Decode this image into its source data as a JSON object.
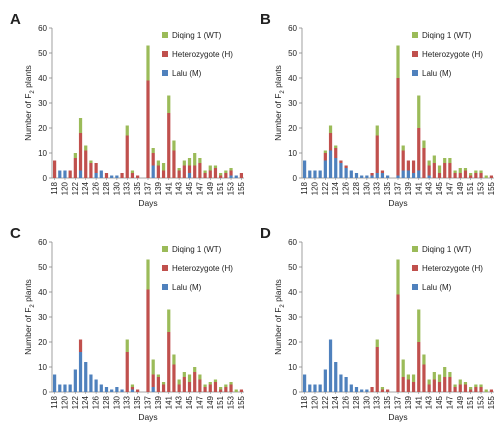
{
  "colors": {
    "WT": "#9bbb59",
    "H": "#c0504d",
    "M": "#4f81bd",
    "axis": "#888888"
  },
  "chart_data": [
    {
      "type": "bar",
      "stacked": true,
      "panel": "A",
      "title": "",
      "xlabel": "Days",
      "ylabel": "Number of F2 plants",
      "ylim": [
        0,
        60
      ],
      "yticks": [
        "0",
        "10",
        "20",
        "30",
        "40",
        "50",
        "60"
      ],
      "categories": [
        "118",
        "119",
        "120",
        "121",
        "122",
        "123",
        "124",
        "125",
        "126",
        "127",
        "128",
        "129",
        "130",
        "131",
        "133",
        "134",
        "135",
        "136",
        "137",
        "138",
        "139",
        "140",
        "141",
        "142",
        "143",
        "144",
        "145",
        "146",
        "147",
        "148",
        "149",
        "150",
        "151",
        "152",
        "153",
        "154",
        "155"
      ],
      "x_tick_labels": [
        "118",
        "120",
        "122",
        "124",
        "126",
        "128",
        "130",
        "133",
        "135",
        "137",
        "139",
        "141",
        "143",
        "145",
        "147",
        "149",
        "151",
        "153",
        "155"
      ],
      "series": [
        {
          "name": "Lalu (M)",
          "key": "M",
          "values": [
            0,
            3,
            3,
            0,
            0,
            3,
            0,
            0,
            2,
            3,
            0,
            1,
            1,
            0,
            0,
            0,
            0,
            0,
            0,
            5,
            0,
            0,
            0,
            0,
            0,
            0,
            2,
            0,
            0,
            0,
            0,
            0,
            0,
            0,
            1,
            1,
            0
          ]
        },
        {
          "name": "Heterozygote (H)",
          "key": "H",
          "values": [
            7,
            0,
            0,
            3,
            8,
            15,
            11,
            6,
            4,
            0,
            2,
            0,
            0,
            2,
            17,
            2,
            1,
            0,
            39,
            5,
            5,
            3,
            26,
            11,
            3,
            5,
            3,
            5,
            6,
            2,
            3,
            4,
            1,
            2,
            2,
            0,
            2
          ]
        },
        {
          "name": "Diqing 1 (WT)",
          "key": "WT",
          "values": [
            0,
            0,
            0,
            0,
            2,
            6,
            2,
            1,
            0,
            0,
            0,
            0,
            0,
            0,
            4,
            1,
            0,
            0,
            14,
            2,
            2,
            3,
            7,
            4,
            1,
            2,
            3,
            5,
            2,
            1,
            2,
            1,
            1,
            1,
            1,
            0,
            0
          ]
        }
      ],
      "legend": [
        "Diqing 1 (WT)",
        "Heterozygote (H)",
        "Lalu (M)"
      ],
      "legend_position": "top-right",
      "grid": false
    },
    {
      "type": "bar",
      "stacked": true,
      "panel": "B",
      "title": "",
      "xlabel": "Days",
      "ylabel": "Number of F2 plants",
      "ylim": [
        0,
        60
      ],
      "yticks": [
        "0",
        "10",
        "20",
        "30",
        "40",
        "50",
        "60"
      ],
      "categories": [
        "118",
        "119",
        "120",
        "121",
        "122",
        "123",
        "124",
        "125",
        "126",
        "127",
        "128",
        "129",
        "130",
        "131",
        "133",
        "134",
        "135",
        "136",
        "137",
        "138",
        "139",
        "140",
        "141",
        "142",
        "143",
        "144",
        "145",
        "146",
        "147",
        "148",
        "149",
        "150",
        "151",
        "152",
        "153",
        "154",
        "155"
      ],
      "x_tick_labels": [
        "118",
        "120",
        "122",
        "124",
        "126",
        "128",
        "130",
        "133",
        "135",
        "137",
        "139",
        "141",
        "143",
        "145",
        "147",
        "149",
        "151",
        "153",
        "155"
      ],
      "series": [
        {
          "name": "Lalu (M)",
          "key": "M",
          "values": [
            7,
            3,
            3,
            3,
            7,
            11,
            8,
            6,
            4,
            3,
            2,
            1,
            1,
            1,
            2,
            2,
            1,
            0,
            1,
            3,
            3,
            2,
            3,
            0,
            1,
            0,
            0,
            0,
            0,
            0,
            0,
            0,
            0,
            0,
            0,
            0,
            0
          ]
        },
        {
          "name": "Heterozygote (H)",
          "key": "H",
          "values": [
            0,
            0,
            0,
            0,
            3,
            7,
            4,
            1,
            1,
            0,
            0,
            0,
            0,
            1,
            15,
            1,
            0,
            0,
            39,
            8,
            4,
            5,
            17,
            12,
            4,
            6,
            2,
            6,
            6,
            2,
            2,
            3,
            1,
            2,
            2,
            0,
            1
          ]
        },
        {
          "name": "Diqing 1 (WT)",
          "key": "WT",
          "values": [
            0,
            0,
            0,
            0,
            1,
            3,
            1,
            0,
            0,
            0,
            0,
            0,
            0,
            0,
            4,
            0,
            0,
            0,
            13,
            2,
            0,
            0,
            13,
            3,
            2,
            3,
            3,
            2,
            2,
            1,
            2,
            1,
            1,
            1,
            1,
            1,
            0
          ]
        }
      ],
      "legend": [
        "Diqing 1 (WT)",
        "Heterozygote (H)",
        "Lalu (M)"
      ],
      "legend_position": "top-right",
      "grid": false
    },
    {
      "type": "bar",
      "stacked": true,
      "panel": "C",
      "title": "",
      "xlabel": "Days",
      "ylabel": "Number of F2 plants",
      "ylim": [
        0,
        60
      ],
      "yticks": [
        "0",
        "10",
        "20",
        "30",
        "40",
        "50",
        "60"
      ],
      "categories": [
        "118",
        "119",
        "120",
        "121",
        "122",
        "123",
        "124",
        "125",
        "126",
        "127",
        "128",
        "129",
        "130",
        "131",
        "133",
        "134",
        "135",
        "136",
        "137",
        "138",
        "139",
        "140",
        "141",
        "142",
        "143",
        "144",
        "145",
        "146",
        "147",
        "148",
        "149",
        "150",
        "151",
        "152",
        "153",
        "154",
        "155"
      ],
      "x_tick_labels": [
        "118",
        "120",
        "122",
        "124",
        "126",
        "128",
        "130",
        "133",
        "135",
        "137",
        "139",
        "141",
        "143",
        "145",
        "147",
        "149",
        "151",
        "153",
        "155"
      ],
      "series": [
        {
          "name": "Lalu (M)",
          "key": "M",
          "values": [
            7,
            3,
            3,
            3,
            9,
            16,
            12,
            7,
            5,
            3,
            2,
            1,
            2,
            1,
            0,
            1,
            0,
            0,
            0,
            2,
            0,
            0,
            0,
            0,
            0,
            0,
            0,
            0,
            0,
            0,
            0,
            0,
            0,
            0,
            0,
            0,
            0
          ]
        },
        {
          "name": "Heterozygote (H)",
          "key": "H",
          "values": [
            0,
            0,
            0,
            0,
            0,
            5,
            0,
            0,
            0,
            0,
            0,
            0,
            0,
            0,
            16,
            1,
            1,
            0,
            41,
            5,
            6,
            3,
            24,
            11,
            3,
            6,
            4,
            8,
            5,
            2,
            3,
            4,
            1,
            2,
            3,
            0,
            1
          ]
        },
        {
          "name": "Diqing 1 (WT)",
          "key": "WT",
          "values": [
            0,
            0,
            0,
            0,
            0,
            0,
            0,
            0,
            0,
            0,
            0,
            0,
            0,
            0,
            5,
            1,
            0,
            0,
            12,
            6,
            1,
            1,
            9,
            4,
            2,
            2,
            3,
            2,
            2,
            1,
            1,
            1,
            1,
            1,
            1,
            1,
            0
          ]
        }
      ],
      "legend": [
        "Diqing 1 (WT)",
        "Heterozygote (H)",
        "Lalu (M)"
      ],
      "legend_position": "top-right",
      "grid": false
    },
    {
      "type": "bar",
      "stacked": true,
      "panel": "D",
      "title": "",
      "xlabel": "Days",
      "ylabel": "Number of F2 plants",
      "ylim": [
        0,
        60
      ],
      "yticks": [
        "0",
        "10",
        "20",
        "30",
        "40",
        "50",
        "60"
      ],
      "categories": [
        "118",
        "119",
        "120",
        "121",
        "122",
        "123",
        "124",
        "125",
        "126",
        "127",
        "128",
        "129",
        "130",
        "131",
        "133",
        "134",
        "135",
        "136",
        "137",
        "138",
        "139",
        "140",
        "141",
        "142",
        "143",
        "144",
        "145",
        "146",
        "147",
        "148",
        "149",
        "150",
        "151",
        "152",
        "153",
        "154",
        "155"
      ],
      "x_tick_labels": [
        "118",
        "120",
        "122",
        "124",
        "126",
        "128",
        "130",
        "133",
        "135",
        "137",
        "139",
        "141",
        "143",
        "145",
        "147",
        "149",
        "151",
        "153",
        "155"
      ],
      "series": [
        {
          "name": "Lalu (M)",
          "key": "M",
          "values": [
            7,
            3,
            3,
            3,
            9,
            21,
            12,
            7,
            6,
            3,
            2,
            1,
            1,
            0,
            0,
            0,
            0,
            0,
            0,
            0,
            0,
            0,
            0,
            0,
            0,
            0,
            0,
            0,
            0,
            0,
            0,
            0,
            0,
            0,
            0,
            0,
            0
          ]
        },
        {
          "name": "Heterozygote (H)",
          "key": "H",
          "values": [
            0,
            0,
            0,
            0,
            0,
            0,
            0,
            0,
            0,
            0,
            0,
            0,
            0,
            2,
            18,
            1,
            1,
            0,
            39,
            6,
            5,
            4,
            20,
            11,
            3,
            5,
            4,
            6,
            6,
            2,
            3,
            3,
            1,
            2,
            2,
            0,
            1
          ]
        },
        {
          "name": "Diqing 1 (WT)",
          "key": "WT",
          "values": [
            0,
            0,
            0,
            0,
            0,
            0,
            0,
            0,
            0,
            0,
            0,
            0,
            0,
            0,
            3,
            1,
            0,
            0,
            14,
            7,
            2,
            3,
            13,
            4,
            2,
            3,
            3,
            4,
            2,
            1,
            2,
            1,
            1,
            1,
            1,
            1,
            0
          ]
        }
      ],
      "legend": [
        "Diqing 1 (WT)",
        "Heterozygote (H)",
        "Lalu (M)"
      ],
      "legend_position": "top-right",
      "grid": false
    }
  ]
}
